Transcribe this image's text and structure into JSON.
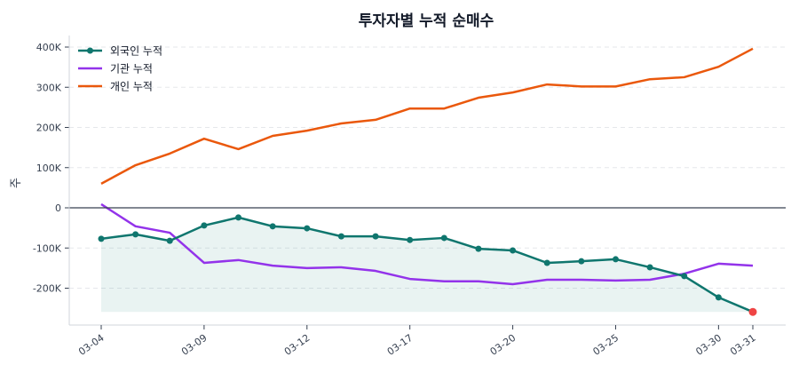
{
  "chart_data": {
    "type": "line",
    "title": "투자자별 누적 순매수",
    "ylabel": "주",
    "xlabel": "",
    "ylim": [
      -290000,
      425000
    ],
    "yticks": [
      -200000,
      -100000,
      0,
      100000,
      200000,
      300000,
      400000
    ],
    "ytick_labels": [
      "-200K",
      "-100K",
      "0",
      "100K",
      "200K",
      "300K",
      "400K"
    ],
    "grid": "horizontal dashed",
    "legend": "top-left",
    "x": [
      "03-04",
      "03-05",
      "03-06",
      "03-09",
      "03-10",
      "03-11",
      "03-12",
      "03-13",
      "03-16",
      "03-17",
      "03-18",
      "03-19",
      "03-20",
      "03-23",
      "03-24",
      "03-25",
      "03-26",
      "03-27",
      "03-30",
      "03-31"
    ],
    "xtick_labels": [
      "03-04",
      "03-09",
      "03-12",
      "03-17",
      "03-20",
      "03-25",
      "03-30",
      "03-31"
    ],
    "series": [
      {
        "name": "외국인 누적",
        "color": "#0f766e",
        "markers": true,
        "fill": true,
        "values": [
          -77000,
          -66000,
          -82000,
          -44000,
          -24000,
          -46000,
          -51000,
          -71000,
          -71000,
          -80000,
          -75000,
          -102000,
          -106000,
          -137000,
          -133000,
          -128000,
          -148000,
          -170000,
          -223000,
          -259000
        ]
      },
      {
        "name": "기관 누적",
        "color": "#9333ea",
        "markers": false,
        "values": [
          9000,
          -46000,
          -62000,
          -137000,
          -130000,
          -144000,
          -150000,
          -148000,
          -157000,
          -177000,
          -183000,
          -183000,
          -190000,
          -179000,
          -179000,
          -181000,
          -179000,
          -164000,
          -139000,
          -144000
        ]
      },
      {
        "name": "개인 누적",
        "color": "#ea580c",
        "markers": false,
        "values": [
          60000,
          106000,
          135000,
          172000,
          146000,
          179000,
          192000,
          210000,
          219000,
          247000,
          247000,
          274000,
          287000,
          307000,
          302000,
          302000,
          320000,
          325000,
          351000,
          396000
        ]
      }
    ],
    "highlight_last_color": "#ef4444"
  }
}
